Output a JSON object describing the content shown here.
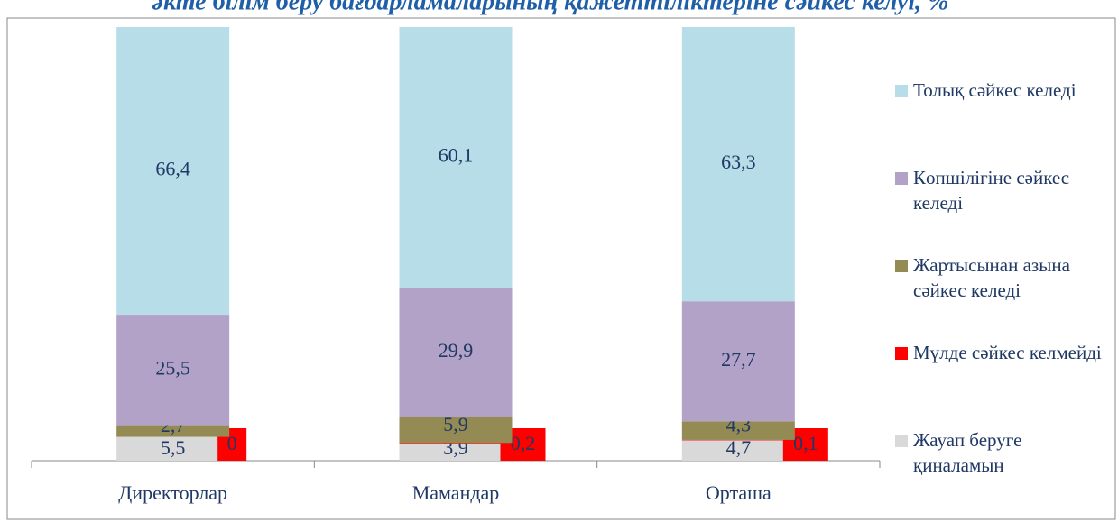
{
  "chart_data": {
    "type": "stacked_bar",
    "title": "әкте білім беру бағдарламаларының қажеттіліктеріне сәйкес келуі, %",
    "categories": [
      "Директорлар",
      "Мамандар",
      "Орташа"
    ],
    "series": [
      {
        "name": "Жауап беруге қиналамын",
        "color": "#d9d9d9",
        "values": [
          5.5,
          3.9,
          4.7
        ],
        "value_labels": [
          "5,5",
          "3,9",
          "4,7"
        ]
      },
      {
        "name": "Мүлде сәйкес келмейді",
        "color": "#ff0000",
        "values": [
          0,
          0.2,
          0.1
        ],
        "value_labels": [
          "0",
          "0,2",
          "0,1"
        ]
      },
      {
        "name": "Жартысынан азына сәйкес келеді",
        "color": "#948a54",
        "values": [
          2.7,
          5.9,
          4.3
        ],
        "value_labels": [
          "2,7",
          "5,9",
          "4,3"
        ]
      },
      {
        "name": "Көпшілігіне сәйкес келеді",
        "color": "#b3a2c7",
        "values": [
          25.5,
          29.9,
          27.7
        ],
        "value_labels": [
          "25,5",
          "29,9",
          "27,7"
        ]
      },
      {
        "name": "Толық сәйкес келеді",
        "color": "#b7dee8",
        "values": [
          66.4,
          60.1,
          63.3
        ],
        "value_labels": [
          "66,4",
          "60,1",
          "63,3"
        ]
      }
    ]
  }
}
